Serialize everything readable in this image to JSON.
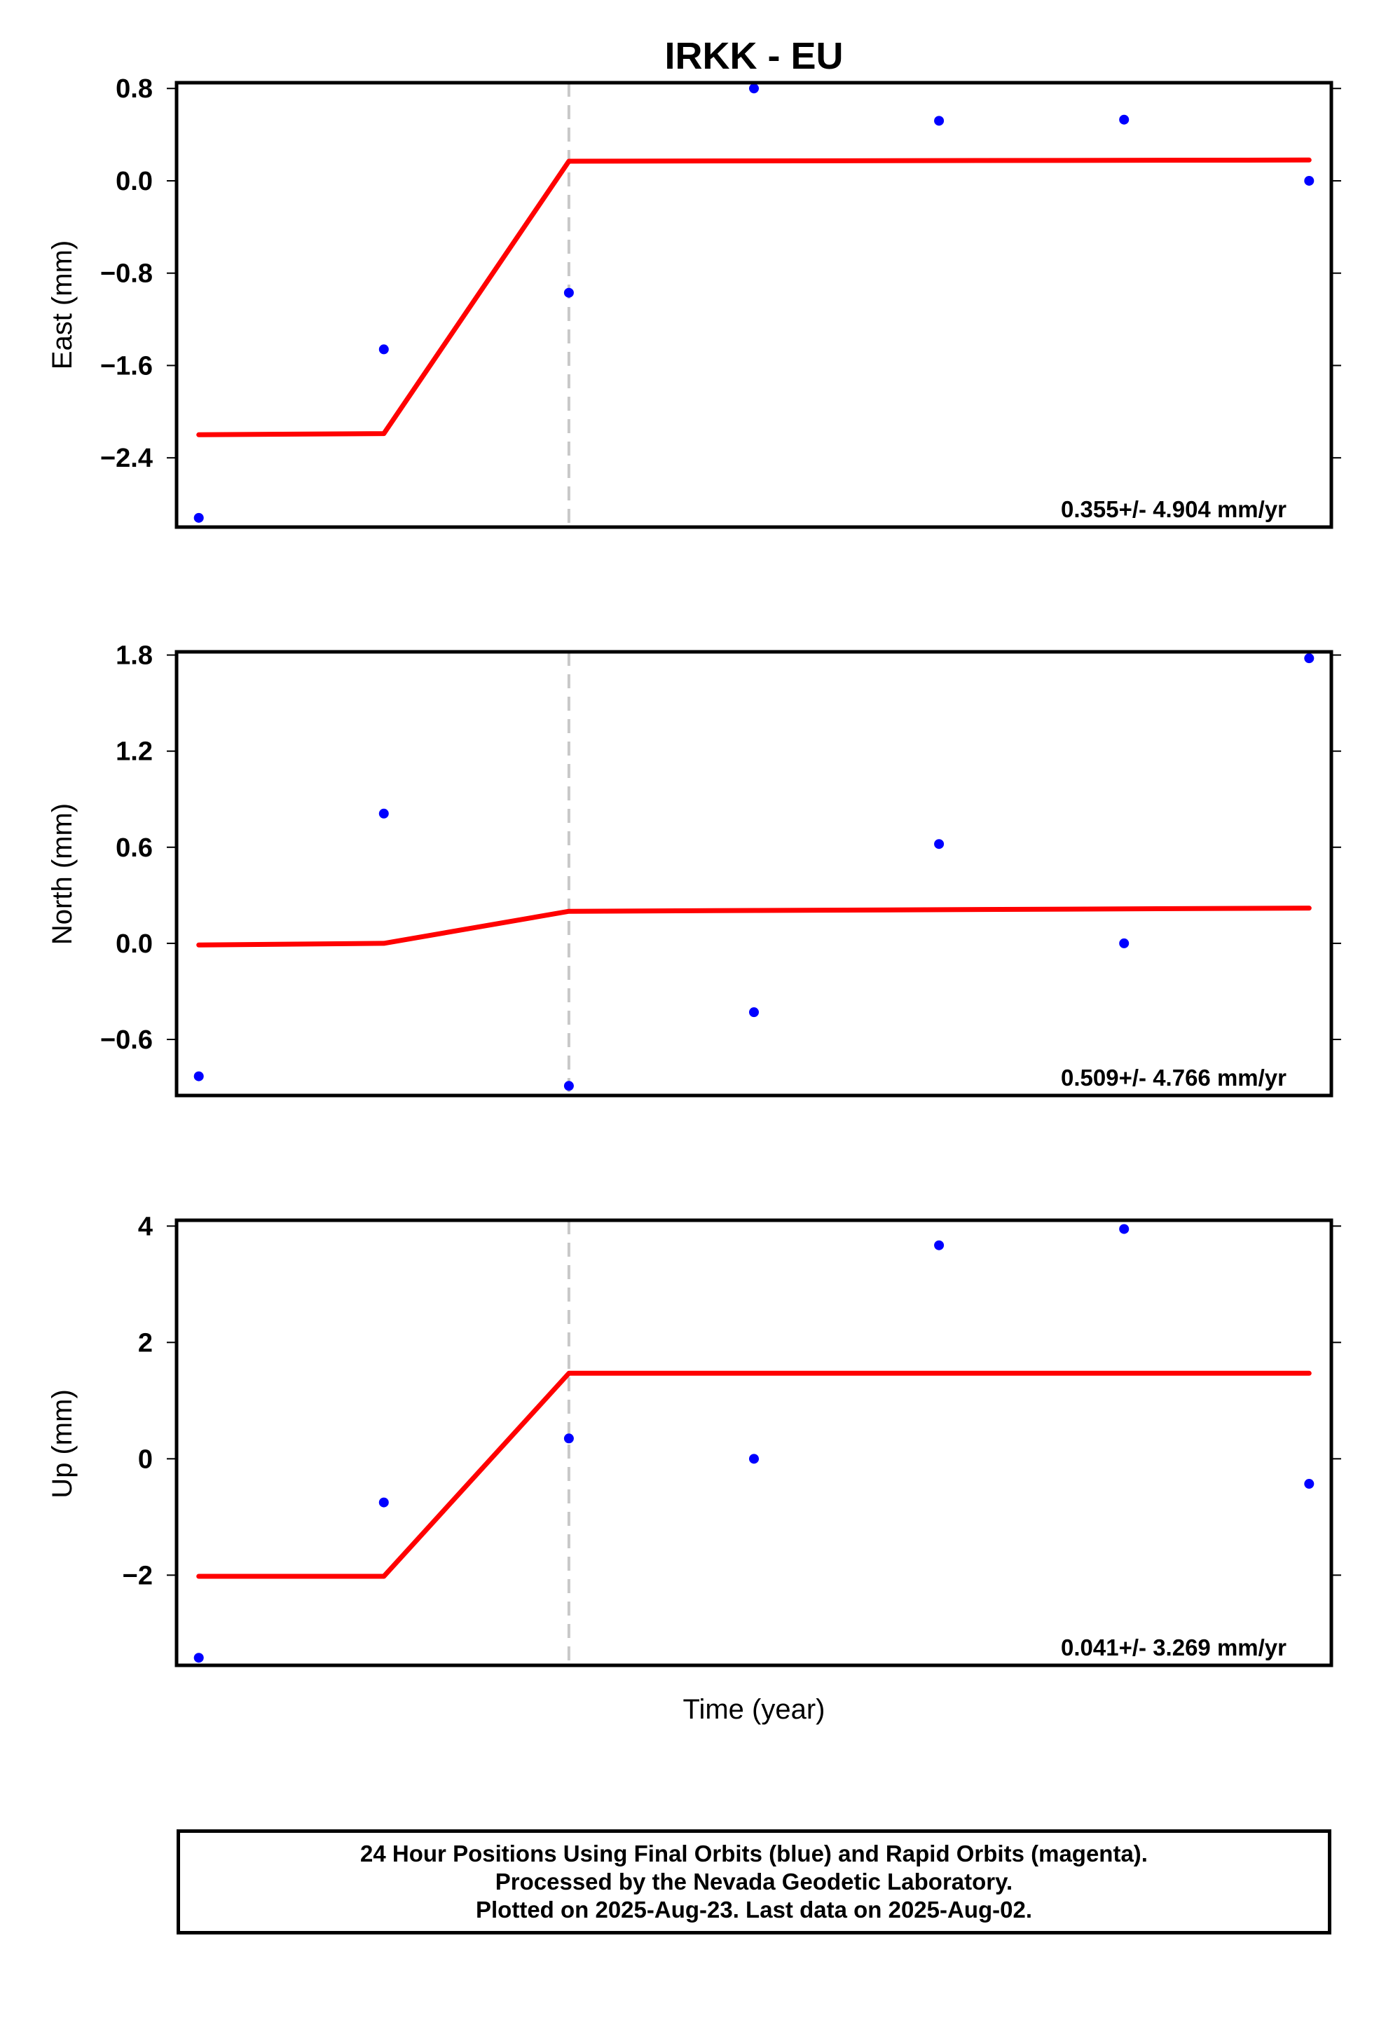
{
  "chart_data": {
    "type": "scatter",
    "title": "IRKK - EU",
    "xlabel": "Time (year)",
    "x_ticks_labeled": false,
    "grid": false,
    "break_line_color": "#c8c8c8",
    "fit_color": "#ff0000",
    "point_color": "#0000ff",
    "panels": [
      {
        "ylabel": "East (mm)",
        "ylim": [
          -3.0,
          0.85
        ],
        "yticks": [
          0.8,
          0.0,
          -0.8,
          -1.6,
          -2.4
        ],
        "ytick_labels": [
          "0.8",
          "0.0",
          "−0.8",
          "−1.6",
          "−2.4"
        ],
        "rate": "0.355+/- 4.904 mm/yr",
        "points": [
          {
            "x": 0,
            "y": -2.92
          },
          {
            "x": 1,
            "y": -1.46
          },
          {
            "x": 2,
            "y": -0.97
          },
          {
            "x": 3,
            "y": 0.8
          },
          {
            "x": 4,
            "y": 0.52
          },
          {
            "x": 5,
            "y": 0.53
          },
          {
            "x": 6,
            "y": 0.0
          }
        ],
        "fit": [
          {
            "x": 0,
            "y": -2.2
          },
          {
            "x": 1,
            "y": -2.19
          },
          {
            "x": 2,
            "y": 0.17
          },
          {
            "x": 6,
            "y": 0.18
          }
        ]
      },
      {
        "ylabel": "North (mm)",
        "ylim": [
          -0.95,
          1.82
        ],
        "yticks": [
          1.8,
          1.2,
          0.6,
          0.0,
          -0.6
        ],
        "ytick_labels": [
          "1.8",
          "1.2",
          "0.6",
          "0.0",
          "−0.6"
        ],
        "rate": "0.509+/- 4.766 mm/yr",
        "points": [
          {
            "x": 0,
            "y": -0.83
          },
          {
            "x": 1,
            "y": 0.81
          },
          {
            "x": 2,
            "y": -0.89
          },
          {
            "x": 3,
            "y": -0.43
          },
          {
            "x": 4,
            "y": 0.62
          },
          {
            "x": 5,
            "y": 0.0
          },
          {
            "x": 6,
            "y": 1.78
          }
        ],
        "fit": [
          {
            "x": 0,
            "y": -0.01
          },
          {
            "x": 1,
            "y": 0.0
          },
          {
            "x": 2,
            "y": 0.2
          },
          {
            "x": 6,
            "y": 0.22
          }
        ]
      },
      {
        "ylabel": "Up (mm)",
        "ylim": [
          -3.55,
          4.1
        ],
        "yticks": [
          4,
          2,
          0,
          -2
        ],
        "ytick_labels": [
          "4",
          "2",
          "0",
          "−2"
        ],
        "rate": "0.041+/- 3.269 mm/yr",
        "points": [
          {
            "x": 0,
            "y": -3.42
          },
          {
            "x": 1,
            "y": -0.75
          },
          {
            "x": 2,
            "y": 0.35
          },
          {
            "x": 3,
            "y": 0.0
          },
          {
            "x": 4,
            "y": 3.67
          },
          {
            "x": 5,
            "y": 3.95
          },
          {
            "x": 6,
            "y": -0.43
          }
        ],
        "fit": [
          {
            "x": 0,
            "y": -2.02
          },
          {
            "x": 1,
            "y": -2.02
          },
          {
            "x": 2,
            "y": 1.47
          },
          {
            "x": 6,
            "y": 1.47
          }
        ]
      }
    ],
    "break_x": 2,
    "x_range": [
      -0.12,
      6.12
    ]
  },
  "footer": {
    "line1": "24 Hour Positions Using Final Orbits (blue) and Rapid Orbits (magenta).",
    "line2": "Processed by the Nevada Geodetic Laboratory.",
    "line3": "Plotted on 2025-Aug-23. Last data on 2025-Aug-02."
  }
}
